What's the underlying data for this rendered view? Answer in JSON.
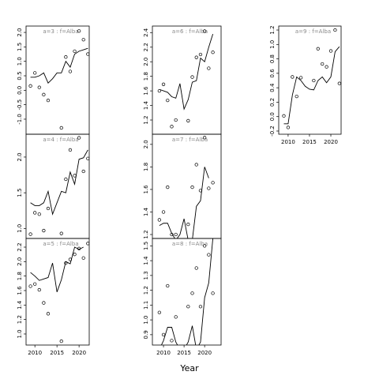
{
  "x_label": "Year",
  "chart_data": [
    {
      "type": "scatter",
      "label": "a=3 : f=Alba",
      "xlim": [
        2008.0,
        2022.3
      ],
      "ylim": [
        -1.52,
        2.22
      ],
      "yticks": [
        {
          "value": -1,
          "label": "-1.0"
        },
        -0.5,
        {
          "value": 0,
          "label": "0.0"
        },
        0.5,
        {
          "value": 1,
          "label": "1.0"
        },
        1.5,
        {
          "value": 2,
          "label": "2.0"
        }
      ],
      "series": [
        {
          "style": "points",
          "color": "#000000",
          "x": [
            2009,
            2010,
            2011,
            2012,
            2013,
            2016,
            2017,
            2018,
            2019,
            2020,
            2021,
            2022
          ],
          "values": [
            0.15,
            0.6,
            0.1,
            -0.15,
            -0.35,
            -1.3,
            1.15,
            0.65,
            1.35,
            2.05,
            1.75,
            1.25
          ]
        },
        {
          "style": "line",
          "color": "#000000",
          "x": [
            2009,
            2010,
            2011,
            2012,
            2013,
            2014,
            2015,
            2016,
            2017,
            2018,
            2019,
            2020,
            2021,
            2022
          ],
          "values": [
            0.45,
            0.45,
            0.5,
            0.6,
            0.25,
            0.4,
            0.6,
            0.6,
            1.0,
            0.8,
            1.25,
            1.35,
            1.4,
            1.45
          ]
        }
      ]
    },
    {
      "type": "scatter",
      "label": "a=4 : f=Alba",
      "xlim": [
        2008.0,
        2022.3
      ],
      "ylim": [
        0.86,
        2.32
      ],
      "yticks": [
        {
          "value": 1,
          "label": "1.0"
        },
        1.5,
        {
          "value": 2,
          "label": "2.0"
        }
      ],
      "series": [
        {
          "style": "points",
          "color": "#000000",
          "x": [
            2009,
            2010,
            2011,
            2012,
            2013,
            2016,
            2017,
            2018,
            2019,
            2020,
            2021,
            2022
          ],
          "values": [
            0.92,
            1.22,
            1.2,
            0.97,
            1.28,
            0.93,
            1.69,
            2.1,
            1.74,
            2.27,
            1.8,
            1.98
          ]
        },
        {
          "style": "line",
          "color": "#000000",
          "x": [
            2009,
            2010,
            2011,
            2012,
            2013,
            2014,
            2015,
            2016,
            2017,
            2018,
            2019,
            2020,
            2021,
            2022
          ],
          "values": [
            1.36,
            1.32,
            1.32,
            1.36,
            1.52,
            1.2,
            1.36,
            1.52,
            1.5,
            1.79,
            1.62,
            1.97,
            1.99,
            2.1
          ]
        }
      ]
    },
    {
      "type": "scatter",
      "label": "a=5 : f=Alba",
      "xlim": [
        2008.0,
        2022.3
      ],
      "ylim": [
        0.847,
        2.32
      ],
      "yticks": [
        {
          "value": 1,
          "label": "1.0"
        },
        1.2,
        1.4,
        1.6,
        1.8,
        {
          "value": 2,
          "label": "2.0"
        },
        2.2
      ],
      "xticks": [
        2010,
        2015,
        2020
      ],
      "series": [
        {
          "style": "points",
          "color": "#000000",
          "x": [
            2009,
            2010,
            2011,
            2012,
            2013,
            2016,
            2017,
            2018,
            2019,
            2020,
            2021,
            2022
          ],
          "values": [
            1.66,
            1.69,
            1.61,
            1.43,
            1.28,
            0.9,
            1.98,
            2.03,
            2.1,
            2.18,
            2.05,
            2.25
          ]
        },
        {
          "style": "line",
          "color": "#000000",
          "x": [
            2009,
            2010,
            2011,
            2012,
            2013,
            2014,
            2015,
            2016,
            2017,
            2018,
            2019,
            2020,
            2021
          ],
          "values": [
            1.85,
            1.8,
            1.74,
            1.76,
            1.78,
            1.98,
            1.58,
            1.75,
            2.0,
            1.97,
            2.2,
            2.17,
            2.2
          ]
        }
      ]
    },
    {
      "type": "scatter",
      "label": "a=6 : f=Alba",
      "xlim": [
        2007.3,
        2024.0
      ],
      "ylim": [
        1.005,
        2.49
      ],
      "yticks": [
        1.2,
        1.4,
        1.6,
        1.8,
        {
          "value": 2,
          "label": "2.0"
        },
        2.2,
        2.4
      ],
      "series": [
        {
          "style": "points",
          "color": "#000000",
          "x": [
            2009,
            2010,
            2011,
            2012,
            2013,
            2016,
            2017,
            2018,
            2019,
            2020,
            2021,
            2022
          ],
          "values": [
            1.6,
            1.69,
            1.47,
            1.11,
            1.2,
            1.19,
            1.79,
            2.06,
            2.1,
            2.42,
            1.91,
            2.13
          ]
        },
        {
          "style": "line",
          "color": "#000000",
          "x": [
            2009,
            2010,
            2011,
            2012,
            2013,
            2014,
            2015,
            2016,
            2017,
            2018,
            2019,
            2020,
            2021,
            2022
          ],
          "values": [
            1.62,
            1.6,
            1.58,
            1.52,
            1.5,
            1.7,
            1.35,
            1.48,
            1.72,
            1.74,
            2.05,
            2.0,
            2.2,
            2.38
          ]
        }
      ]
    },
    {
      "type": "scatter",
      "label": "a=7 : f=Alba",
      "xlim": [
        2007.3,
        2024.0
      ],
      "ylim": [
        1.165,
        2.09
      ],
      "yticks": [
        1.2,
        1.4,
        1.6,
        1.8,
        {
          "value": 2,
          "label": "2.0"
        }
      ],
      "series": [
        {
          "style": "points",
          "color": "#000000",
          "x": [
            2009,
            2010,
            2011,
            2012,
            2013,
            2016,
            2017,
            2018,
            2019,
            2020,
            2021,
            2022
          ],
          "values": [
            1.33,
            1.4,
            1.62,
            1.2,
            1.2,
            1.29,
            1.62,
            1.82,
            1.59,
            2.06,
            1.61,
            1.66
          ]
        },
        {
          "style": "line",
          "color": "#000000",
          "x": [
            2009,
            2010,
            2011,
            2012,
            2013,
            2014,
            2015,
            2016,
            2017,
            2018,
            2019,
            2020,
            2021
          ],
          "values": [
            1.28,
            1.3,
            1.3,
            1.21,
            1.15,
            1.2,
            1.34,
            1.15,
            1.15,
            1.45,
            1.5,
            1.8,
            1.7
          ]
        }
      ]
    },
    {
      "type": "scatter",
      "label": "a=8 : f=Alba",
      "xlim": [
        2007.3,
        2024.0
      ],
      "ylim": [
        0.83,
        1.55
      ],
      "yticks": [
        0.9,
        {
          "value": 1,
          "label": "1.0"
        },
        1.1,
        1.2,
        1.3,
        1.4,
        1.5
      ],
      "xticks": [
        2010,
        2015,
        2020
      ],
      "series": [
        {
          "style": "points",
          "color": "#000000",
          "x": [
            2009,
            2010,
            2011,
            2012,
            2013,
            2016,
            2017,
            2018,
            2019,
            2020,
            2021,
            2022
          ],
          "values": [
            1.05,
            0.9,
            1.23,
            0.86,
            1.02,
            1.09,
            1.18,
            1.35,
            1.09,
            1.5,
            1.44,
            1.18
          ]
        },
        {
          "style": "line",
          "color": "#000000",
          "x": [
            2009,
            2010,
            2011,
            2012,
            2013,
            2014,
            2015,
            2016,
            2017,
            2018,
            2019,
            2020,
            2021,
            2022
          ],
          "values": [
            0.8,
            0.86,
            0.95,
            0.95,
            0.85,
            0.8,
            0.8,
            0.85,
            0.96,
            0.8,
            0.85,
            1.15,
            1.25,
            1.55
          ]
        }
      ]
    },
    {
      "type": "scatter",
      "label": "a=9 : f=Alba",
      "xlim": [
        2007.8,
        2022.4
      ],
      "ylim": [
        -0.244,
        1.255
      ],
      "yticks": [
        -0.2,
        {
          "value": 0,
          "label": "0.0"
        },
        0.2,
        0.4,
        0.6,
        0.8,
        {
          "value": 1,
          "label": "1.0"
        },
        1.2
      ],
      "xticks": [
        2010,
        2015,
        2020
      ],
      "series": [
        {
          "style": "points",
          "color": "#000000",
          "x": [
            2009,
            2010,
            2011,
            2012,
            2013,
            2016,
            2017,
            2018,
            2019,
            2020,
            2021,
            2022
          ],
          "values": [
            0.01,
            -0.15,
            0.55,
            0.28,
            0.54,
            0.5,
            0.94,
            0.73,
            0.69,
            0.91,
            1.2,
            0.46
          ]
        },
        {
          "style": "line",
          "color": "#000000",
          "x": [
            2009,
            2010,
            2011,
            2012,
            2013,
            2014,
            2015,
            2016,
            2017,
            2018,
            2019,
            2020,
            2021,
            2022
          ],
          "values": [
            -0.1,
            -0.1,
            0.3,
            0.55,
            0.5,
            0.42,
            0.38,
            0.37,
            0.5,
            0.55,
            0.47,
            0.55,
            0.9,
            0.97
          ]
        }
      ]
    }
  ]
}
